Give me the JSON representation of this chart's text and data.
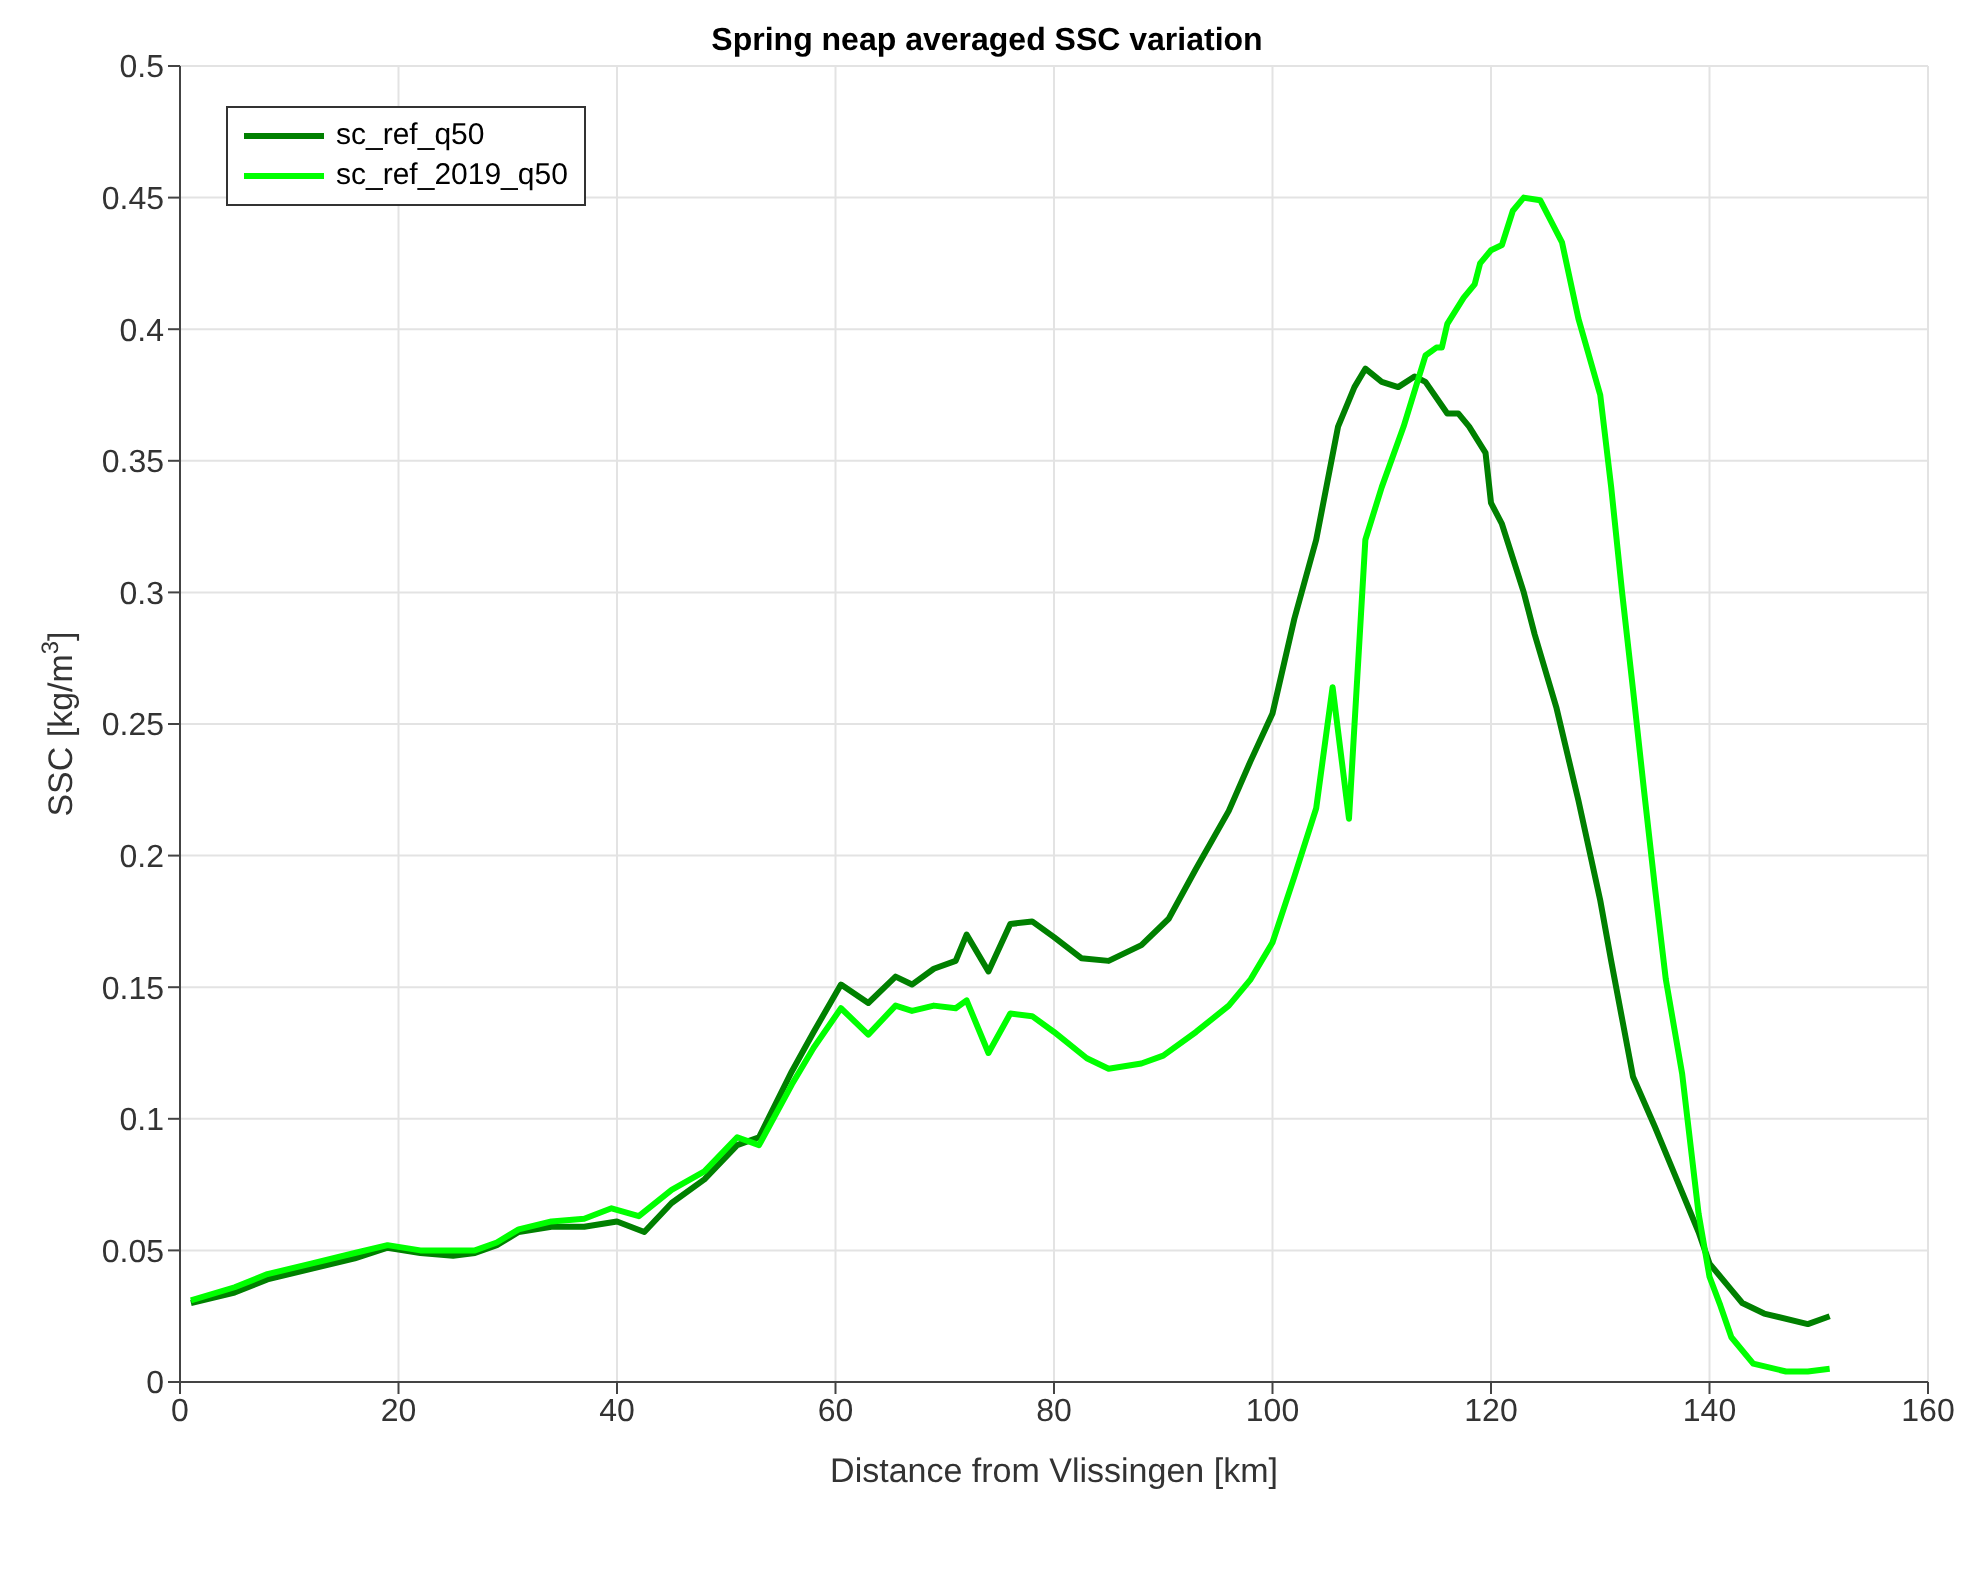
{
  "chart_data": {
    "type": "line",
    "title": "Spring neap averaged SSC variation",
    "xlabel": "Distance from Vlissingen [km]",
    "ylabel": "SSC [kg/m$^{3}$]",
    "xlim": [
      0,
      160
    ],
    "xticks": [
      0,
      20,
      40,
      60,
      80,
      100,
      120,
      140,
      160
    ],
    "ylim": [
      0,
      0.5
    ],
    "yticks": [
      0,
      0.05,
      0.1,
      0.15,
      0.2,
      0.25,
      0.3,
      0.35,
      0.4,
      0.45,
      0.5
    ],
    "grid": true,
    "legend": "top left",
    "marker": "none",
    "line_style": "solid",
    "series": [
      {
        "name": "sc_ref_q50",
        "color": "#008000",
        "x": [
          1,
          5,
          8,
          12,
          16,
          19,
          22,
          25,
          27,
          29,
          31,
          34,
          37,
          40,
          42.5,
          45,
          48,
          51,
          53,
          56,
          58,
          60.5,
          63,
          65.5,
          67,
          69,
          71,
          72,
          74,
          76,
          78,
          80,
          82.5,
          85,
          88,
          90.5,
          93,
          96,
          98,
          100,
          102,
          104,
          106,
          107.5,
          108.5,
          110,
          111.5,
          113,
          114,
          116,
          117,
          118,
          119.5,
          120,
          121,
          123,
          124,
          126,
          128,
          130,
          131,
          132,
          133,
          135,
          137,
          139,
          140,
          142,
          143,
          145,
          149,
          151
        ],
        "values": [
          0.03,
          0.034,
          0.039,
          0.043,
          0.047,
          0.051,
          0.049,
          0.048,
          0.049,
          0.052,
          0.057,
          0.059,
          0.059,
          0.061,
          0.057,
          0.068,
          0.077,
          0.09,
          0.093,
          0.118,
          0.133,
          0.151,
          0.144,
          0.154,
          0.151,
          0.157,
          0.16,
          0.17,
          0.156,
          0.174,
          0.175,
          0.169,
          0.161,
          0.16,
          0.166,
          0.176,
          0.195,
          0.217,
          0.236,
          0.254,
          0.29,
          0.32,
          0.363,
          0.378,
          0.385,
          0.38,
          0.378,
          0.382,
          0.38,
          0.368,
          0.368,
          0.363,
          0.353,
          0.334,
          0.326,
          0.3,
          0.284,
          0.256,
          0.221,
          0.183,
          0.16,
          0.138,
          0.116,
          0.097,
          0.077,
          0.057,
          0.045,
          0.035,
          0.03,
          0.026,
          0.022,
          0.025
        ]
      },
      {
        "name": "sc_ref_2019_q50",
        "color": "#00ff00",
        "x": [
          1,
          5,
          8,
          12,
          16,
          19,
          22,
          25,
          27,
          29,
          31,
          34,
          37,
          39.5,
          42,
          45,
          48,
          51,
          53,
          56,
          58,
          60.5,
          63,
          65.5,
          67,
          69,
          71,
          72,
          74,
          76,
          78,
          80,
          83,
          85,
          88,
          90,
          93,
          96,
          98,
          100,
          102,
          104,
          105.5,
          107,
          108.5,
          110,
          112,
          114,
          115,
          115.5,
          116,
          117.5,
          118.5,
          119,
          120,
          121,
          122,
          123,
          124.5,
          126.5,
          128,
          130,
          131,
          132,
          133,
          134,
          135,
          136,
          137.5,
          139,
          140,
          141,
          142,
          144,
          147,
          149,
          151
        ],
        "values": [
          0.031,
          0.036,
          0.041,
          0.045,
          0.049,
          0.052,
          0.05,
          0.05,
          0.05,
          0.053,
          0.058,
          0.061,
          0.062,
          0.066,
          0.063,
          0.073,
          0.08,
          0.093,
          0.09,
          0.113,
          0.127,
          0.142,
          0.132,
          0.143,
          0.141,
          0.143,
          0.142,
          0.145,
          0.125,
          0.14,
          0.139,
          0.133,
          0.123,
          0.119,
          0.121,
          0.124,
          0.133,
          0.143,
          0.153,
          0.167,
          0.192,
          0.218,
          0.264,
          0.214,
          0.32,
          0.34,
          0.363,
          0.39,
          0.393,
          0.393,
          0.402,
          0.412,
          0.417,
          0.425,
          0.43,
          0.432,
          0.445,
          0.45,
          0.449,
          0.433,
          0.404,
          0.375,
          0.34,
          0.3,
          0.263,
          0.225,
          0.188,
          0.153,
          0.117,
          0.064,
          0.04,
          0.029,
          0.017,
          0.007,
          0.004,
          0.004,
          0.005
        ]
      }
    ]
  }
}
